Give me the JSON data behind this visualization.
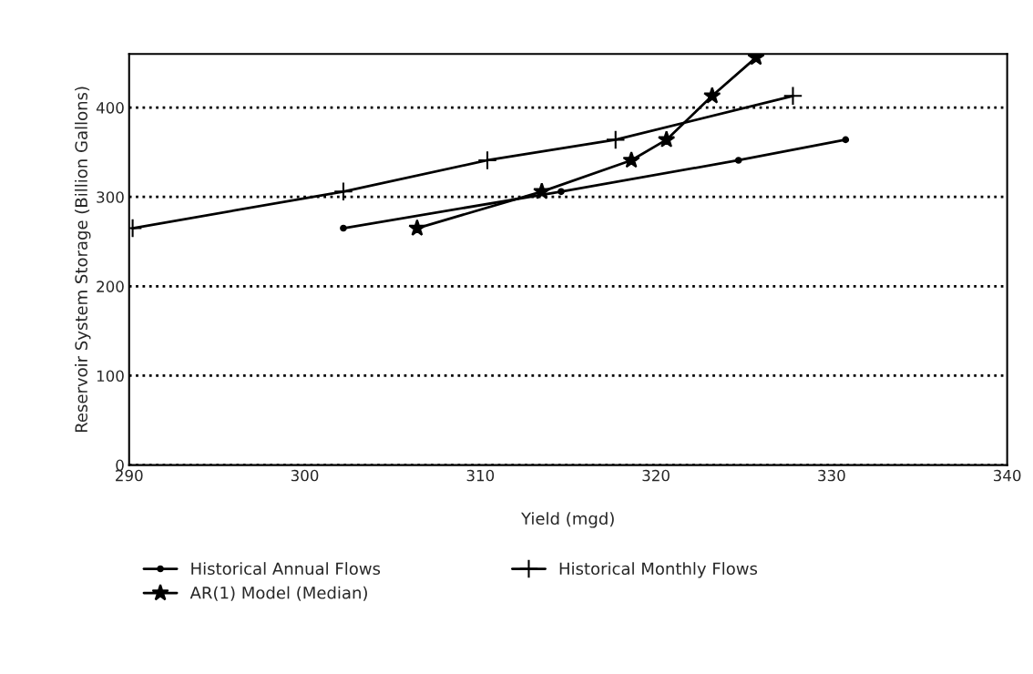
{
  "chart_data": {
    "type": "line",
    "xlabel": "Yield (mgd)",
    "ylabel": "Reservoir System Storage (Billion Gallons)",
    "xlim": [
      290,
      340
    ],
    "xticks": [
      290,
      300,
      310,
      320,
      330,
      340
    ],
    "ylim": [
      0,
      460
    ],
    "yticks": [
      0,
      100,
      200,
      300,
      400
    ],
    "grid": "y",
    "legend": "bottom",
    "line_style": "solid",
    "series": [
      {
        "name": "Historical Annual Flows",
        "color": "#000000",
        "marker": "circle",
        "x": [
          302.2,
          314.6,
          324.7,
          330.8
        ],
        "values": [
          265,
          306,
          341,
          364
        ]
      },
      {
        "name": "Historical Monthly Flows",
        "color": "#000000",
        "marker": "cross",
        "x": [
          290.2,
          302.2,
          310.4,
          317.7,
          327.8
        ],
        "values": [
          265,
          306,
          341,
          364,
          413
        ]
      },
      {
        "name": "AR(1) Model (Median)",
        "color": "#000000",
        "marker": "star",
        "x": [
          306.4,
          313.5,
          318.6,
          320.6,
          323.2,
          325.7
        ],
        "values": [
          265,
          306,
          341,
          364,
          413,
          456
        ]
      }
    ]
  }
}
